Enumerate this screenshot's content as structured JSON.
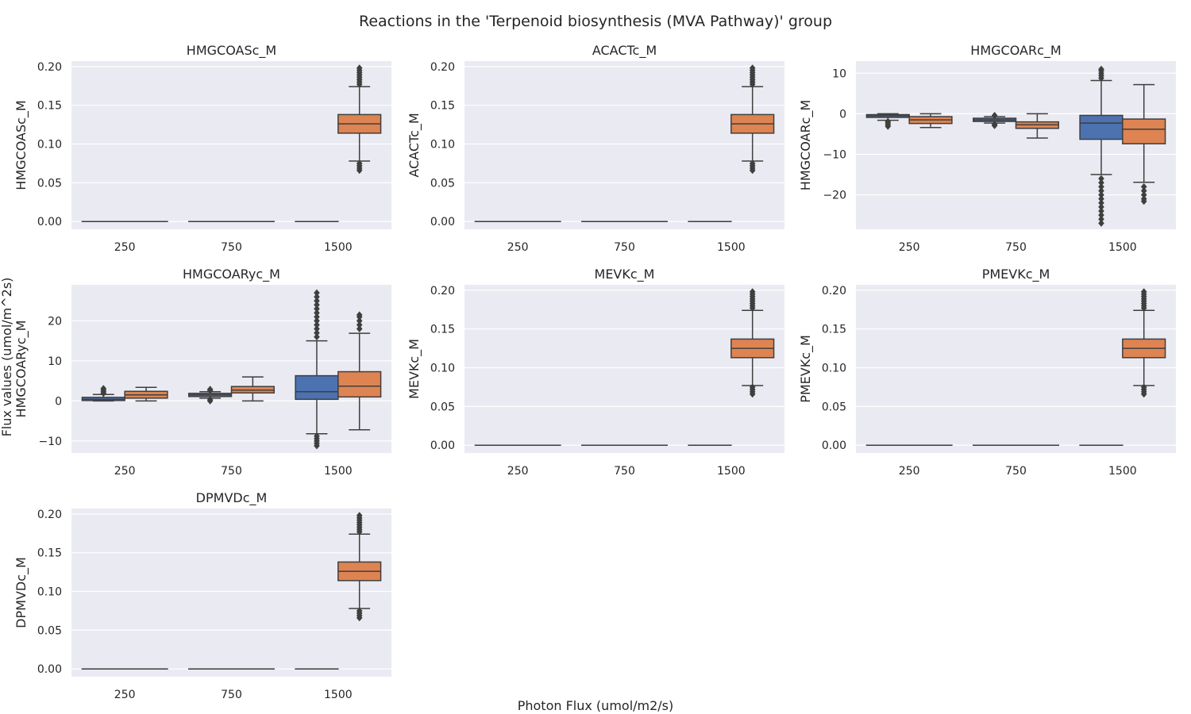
{
  "figure": {
    "title": "Reactions in the 'Terpenoid biosynthesis (MVA Pathway)' group",
    "xlabel": "Photon Flux (umol/m2/s)",
    "ylabel": "Flux values (umol/m^2s)"
  },
  "chart_data": [
    {
      "type": "box",
      "title": "HMGCOASc_M",
      "ylabel": "HMGCOASc_M",
      "categories": [
        "250",
        "750",
        "1500"
      ],
      "ylim": [
        -0.01,
        0.207
      ],
      "yticks": [
        0.0,
        0.05,
        0.1,
        0.15,
        0.2
      ],
      "ytick_labels": [
        "0.00",
        "0.05",
        "0.10",
        "0.15",
        "0.20"
      ],
      "series_colors": [
        "#4c72b0",
        "#dd8452"
      ],
      "boxes": [
        {
          "category": "250",
          "series": 0,
          "q1": 0,
          "median": 0,
          "q3": 0,
          "wlo": 0,
          "whi": 0,
          "outliers": []
        },
        {
          "category": "250",
          "series": 1,
          "q1": 0,
          "median": 0,
          "q3": 0,
          "wlo": 0,
          "whi": 0,
          "outliers": []
        },
        {
          "category": "750",
          "series": 0,
          "q1": 0,
          "median": 0,
          "q3": 0,
          "wlo": 0,
          "whi": 0,
          "outliers": []
        },
        {
          "category": "750",
          "series": 1,
          "q1": 0,
          "median": 0,
          "q3": 0,
          "wlo": 0,
          "whi": 0,
          "outliers": []
        },
        {
          "category": "1500",
          "series": 0,
          "q1": 0,
          "median": 0,
          "q3": 0,
          "wlo": 0,
          "whi": 0,
          "outliers": []
        },
        {
          "category": "1500",
          "series": 1,
          "q1": 0.114,
          "median": 0.126,
          "q3": 0.138,
          "wlo": 0.078,
          "whi": 0.174,
          "outliers": [
            0.066,
            0.069,
            0.072,
            0.075,
            0.177,
            0.18,
            0.183,
            0.186,
            0.189,
            0.192,
            0.195,
            0.198
          ]
        }
      ]
    },
    {
      "type": "box",
      "title": "ACACTc_M",
      "ylabel": "ACACTc_M",
      "categories": [
        "250",
        "750",
        "1500"
      ],
      "ylim": [
        -0.01,
        0.207
      ],
      "yticks": [
        0.0,
        0.05,
        0.1,
        0.15,
        0.2
      ],
      "ytick_labels": [
        "0.00",
        "0.05",
        "0.10",
        "0.15",
        "0.20"
      ],
      "series_colors": [
        "#4c72b0",
        "#dd8452"
      ],
      "boxes": [
        {
          "category": "250",
          "series": 0,
          "q1": 0,
          "median": 0,
          "q3": 0,
          "wlo": 0,
          "whi": 0,
          "outliers": []
        },
        {
          "category": "250",
          "series": 1,
          "q1": 0,
          "median": 0,
          "q3": 0,
          "wlo": 0,
          "whi": 0,
          "outliers": []
        },
        {
          "category": "750",
          "series": 0,
          "q1": 0,
          "median": 0,
          "q3": 0,
          "wlo": 0,
          "whi": 0,
          "outliers": []
        },
        {
          "category": "750",
          "series": 1,
          "q1": 0,
          "median": 0,
          "q3": 0,
          "wlo": 0,
          "whi": 0,
          "outliers": []
        },
        {
          "category": "1500",
          "series": 0,
          "q1": 0,
          "median": 0,
          "q3": 0,
          "wlo": 0,
          "whi": 0,
          "outliers": []
        },
        {
          "category": "1500",
          "series": 1,
          "q1": 0.114,
          "median": 0.126,
          "q3": 0.138,
          "wlo": 0.078,
          "whi": 0.174,
          "outliers": [
            0.066,
            0.069,
            0.072,
            0.075,
            0.177,
            0.18,
            0.183,
            0.186,
            0.189,
            0.192,
            0.195,
            0.198
          ]
        }
      ]
    },
    {
      "type": "box",
      "title": "HMGCOARc_M",
      "ylabel": "HMGCOARc_M",
      "categories": [
        "250",
        "750",
        "1500"
      ],
      "ylim": [
        -28.5,
        13
      ],
      "yticks": [
        -20,
        -10,
        0,
        10
      ],
      "ytick_labels": [
        "−20",
        "−10",
        "0",
        "10"
      ],
      "series_colors": [
        "#4c72b0",
        "#dd8452"
      ],
      "boxes": [
        {
          "category": "250",
          "series": 0,
          "q1": -0.9,
          "median": -0.5,
          "q3": -0.2,
          "wlo": -1.6,
          "whi": 0,
          "outliers": [
            -1.9,
            -2.3,
            -2.7,
            -3.1
          ]
        },
        {
          "category": "250",
          "series": 1,
          "q1": -2.4,
          "median": -1.5,
          "q3": -0.7,
          "wlo": -3.4,
          "whi": 0,
          "outliers": []
        },
        {
          "category": "750",
          "series": 0,
          "q1": -1.9,
          "median": -1.5,
          "q3": -1.1,
          "wlo": -2.3,
          "whi": -0.7,
          "outliers": [
            -0.4,
            -2.6,
            -2.9
          ]
        },
        {
          "category": "750",
          "series": 1,
          "q1": -3.6,
          "median": -2.7,
          "q3": -2.0,
          "wlo": -6.0,
          "whi": 0,
          "outliers": []
        },
        {
          "category": "1500",
          "series": 0,
          "q1": -6.3,
          "median": -2.3,
          "q3": -0.4,
          "wlo": -15.0,
          "whi": 8.2,
          "outliers": [
            8.8,
            9.4,
            10.0,
            10.6,
            11.0,
            -16,
            -17,
            -18,
            -19,
            -20,
            -21,
            -22,
            -23,
            -24,
            -25,
            -26,
            -27
          ]
        },
        {
          "category": "1500",
          "series": 1,
          "q1": -7.4,
          "median": -3.8,
          "q3": -1.3,
          "wlo": -16.9,
          "whi": 7.2,
          "outliers": [
            -18.0,
            -19.0,
            -20.0,
            -21.0,
            -21.6
          ]
        }
      ]
    },
    {
      "type": "box",
      "title": "HMGCOARyc_M",
      "ylabel": "HMGCOARyc_M",
      "categories": [
        "250",
        "750",
        "1500"
      ],
      "ylim": [
        -13,
        29
      ],
      "yticks": [
        -10,
        0,
        10,
        20
      ],
      "ytick_labels": [
        "−10",
        "0",
        "10",
        "20"
      ],
      "series_colors": [
        "#4c72b0",
        "#dd8452"
      ],
      "boxes": [
        {
          "category": "250",
          "series": 0,
          "q1": 0.1,
          "median": 0.4,
          "q3": 0.9,
          "wlo": 0,
          "whi": 1.6,
          "outliers": [
            1.9,
            2.3,
            2.7,
            3.1
          ]
        },
        {
          "category": "250",
          "series": 1,
          "q1": 0.7,
          "median": 1.5,
          "q3": 2.4,
          "wlo": 0,
          "whi": 3.4,
          "outliers": []
        },
        {
          "category": "750",
          "series": 0,
          "q1": 1.1,
          "median": 1.5,
          "q3": 1.9,
          "wlo": 0.7,
          "whi": 2.3,
          "outliers": [
            0.3,
            0.0,
            2.6,
            2.9
          ]
        },
        {
          "category": "750",
          "series": 1,
          "q1": 2.0,
          "median": 2.7,
          "q3": 3.6,
          "wlo": 0,
          "whi": 6.0,
          "outliers": []
        },
        {
          "category": "1500",
          "series": 0,
          "q1": 0.4,
          "median": 2.3,
          "q3": 6.3,
          "wlo": -8.2,
          "whi": 15.0,
          "outliers": [
            16,
            17,
            18,
            19,
            20,
            21,
            22,
            23,
            24,
            25,
            26,
            27,
            -8.8,
            -9.4,
            -10.0,
            -10.6,
            -11.2
          ]
        },
        {
          "category": "1500",
          "series": 1,
          "q1": 1.0,
          "median": 3.7,
          "q3": 7.3,
          "wlo": -7.2,
          "whi": 16.9,
          "outliers": [
            18,
            19,
            20,
            21,
            21.5
          ]
        }
      ]
    },
    {
      "type": "box",
      "title": "MEVKc_M",
      "ylabel": "MEVKc_M",
      "categories": [
        "250",
        "750",
        "1500"
      ],
      "ylim": [
        -0.01,
        0.207
      ],
      "yticks": [
        0.0,
        0.05,
        0.1,
        0.15,
        0.2
      ],
      "ytick_labels": [
        "0.00",
        "0.05",
        "0.10",
        "0.15",
        "0.20"
      ],
      "series_colors": [
        "#4c72b0",
        "#dd8452"
      ],
      "boxes": [
        {
          "category": "250",
          "series": 0,
          "q1": 0,
          "median": 0,
          "q3": 0,
          "wlo": 0,
          "whi": 0,
          "outliers": []
        },
        {
          "category": "250",
          "series": 1,
          "q1": 0,
          "median": 0,
          "q3": 0,
          "wlo": 0,
          "whi": 0,
          "outliers": []
        },
        {
          "category": "750",
          "series": 0,
          "q1": 0,
          "median": 0,
          "q3": 0,
          "wlo": 0,
          "whi": 0,
          "outliers": []
        },
        {
          "category": "750",
          "series": 1,
          "q1": 0,
          "median": 0,
          "q3": 0,
          "wlo": 0,
          "whi": 0,
          "outliers": []
        },
        {
          "category": "1500",
          "series": 0,
          "q1": 0,
          "median": 0,
          "q3": 0,
          "wlo": 0,
          "whi": 0,
          "outliers": []
        },
        {
          "category": "1500",
          "series": 1,
          "q1": 0.113,
          "median": 0.125,
          "q3": 0.137,
          "wlo": 0.077,
          "whi": 0.174,
          "outliers": [
            0.066,
            0.069,
            0.072,
            0.075,
            0.177,
            0.18,
            0.183,
            0.186,
            0.189,
            0.192,
            0.195,
            0.198
          ]
        }
      ]
    },
    {
      "type": "box",
      "title": "PMEVKc_M",
      "ylabel": "PMEVKc_M",
      "categories": [
        "250",
        "750",
        "1500"
      ],
      "ylim": [
        -0.01,
        0.207
      ],
      "yticks": [
        0.0,
        0.05,
        0.1,
        0.15,
        0.2
      ],
      "ytick_labels": [
        "0.00",
        "0.05",
        "0.10",
        "0.15",
        "0.20"
      ],
      "series_colors": [
        "#4c72b0",
        "#dd8452"
      ],
      "boxes": [
        {
          "category": "250",
          "series": 0,
          "q1": 0,
          "median": 0,
          "q3": 0,
          "wlo": 0,
          "whi": 0,
          "outliers": []
        },
        {
          "category": "250",
          "series": 1,
          "q1": 0,
          "median": 0,
          "q3": 0,
          "wlo": 0,
          "whi": 0,
          "outliers": []
        },
        {
          "category": "750",
          "series": 0,
          "q1": 0,
          "median": 0,
          "q3": 0,
          "wlo": 0,
          "whi": 0,
          "outliers": []
        },
        {
          "category": "750",
          "series": 1,
          "q1": 0,
          "median": 0,
          "q3": 0,
          "wlo": 0,
          "whi": 0,
          "outliers": []
        },
        {
          "category": "1500",
          "series": 0,
          "q1": 0,
          "median": 0,
          "q3": 0,
          "wlo": 0,
          "whi": 0,
          "outliers": []
        },
        {
          "category": "1500",
          "series": 1,
          "q1": 0.113,
          "median": 0.125,
          "q3": 0.137,
          "wlo": 0.077,
          "whi": 0.174,
          "outliers": [
            0.066,
            0.069,
            0.072,
            0.075,
            0.177,
            0.18,
            0.183,
            0.186,
            0.189,
            0.192,
            0.195,
            0.198
          ]
        }
      ]
    },
    {
      "type": "box",
      "title": "DPMVDc_M",
      "ylabel": "DPMVDc_M",
      "categories": [
        "250",
        "750",
        "1500"
      ],
      "ylim": [
        -0.01,
        0.207
      ],
      "yticks": [
        0.0,
        0.05,
        0.1,
        0.15,
        0.2
      ],
      "ytick_labels": [
        "0.00",
        "0.05",
        "0.10",
        "0.15",
        "0.20"
      ],
      "series_colors": [
        "#4c72b0",
        "#dd8452"
      ],
      "boxes": [
        {
          "category": "250",
          "series": 0,
          "q1": 0,
          "median": 0,
          "q3": 0,
          "wlo": 0,
          "whi": 0,
          "outliers": []
        },
        {
          "category": "250",
          "series": 1,
          "q1": 0,
          "median": 0,
          "q3": 0,
          "wlo": 0,
          "whi": 0,
          "outliers": []
        },
        {
          "category": "750",
          "series": 0,
          "q1": 0,
          "median": 0,
          "q3": 0,
          "wlo": 0,
          "whi": 0,
          "outliers": []
        },
        {
          "category": "750",
          "series": 1,
          "q1": 0,
          "median": 0,
          "q3": 0,
          "wlo": 0,
          "whi": 0,
          "outliers": []
        },
        {
          "category": "1500",
          "series": 0,
          "q1": 0,
          "median": 0,
          "q3": 0,
          "wlo": 0,
          "whi": 0,
          "outliers": []
        },
        {
          "category": "1500",
          "series": 1,
          "q1": 0.114,
          "median": 0.126,
          "q3": 0.138,
          "wlo": 0.078,
          "whi": 0.174,
          "outliers": [
            0.066,
            0.069,
            0.072,
            0.075,
            0.177,
            0.18,
            0.183,
            0.186,
            0.189,
            0.192,
            0.195,
            0.198
          ]
        }
      ]
    }
  ]
}
